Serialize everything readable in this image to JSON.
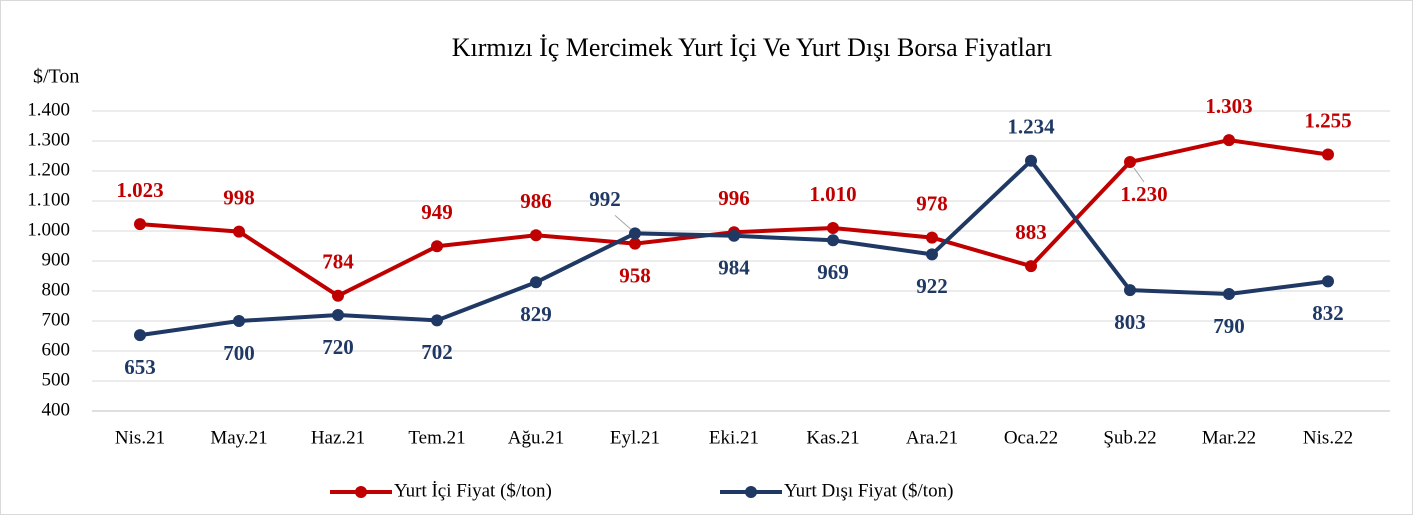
{
  "chart_data": {
    "type": "line",
    "title": "Kırmızı İç Mercimek Yurt İçi Ve  Yurt Dışı Borsa Fiyatları",
    "y_label": "$/Ton",
    "categories": [
      "Nis.21",
      "May.21",
      "Haz.21",
      "Tem.21",
      "Ağu.21",
      "Eyl.21",
      "Eki.21",
      "Kas.21",
      "Ara.21",
      "Oca.22",
      "Şub.22",
      "Mar.22",
      "Nis.22"
    ],
    "series": [
      {
        "name": "Yurt İçi Fiyat ($/ton)",
        "color": "#c00000",
        "values": [
          1023,
          998,
          784,
          949,
          986,
          958,
          996,
          1010,
          978,
          883,
          1230,
          1303,
          1255
        ],
        "value_labels": [
          "1.023",
          "998",
          "784",
          "949",
          "986",
          "958",
          "996",
          "1.010",
          "978",
          "883",
          "1.230",
          "1.303",
          "1.255"
        ]
      },
      {
        "name": "Yurt Dışı Fiyat ($/ton)",
        "color": "#1f3864",
        "values": [
          653,
          700,
          720,
          702,
          829,
          992,
          984,
          969,
          922,
          1234,
          803,
          790,
          832
        ],
        "value_labels": [
          "653",
          "700",
          "720",
          "702",
          "829",
          "992",
          "984",
          "969",
          "922",
          "1.234",
          "803",
          "790",
          "832"
        ]
      }
    ],
    "ylim": [
      400,
      1400
    ],
    "yticks": [
      400,
      500,
      600,
      700,
      800,
      900,
      {
        "value": 1000,
        "label": "1.000"
      },
      {
        "value": 1100,
        "label": "1.100"
      },
      {
        "value": 1200,
        "label": "1.200"
      },
      {
        "value": 1300,
        "label": "1.300"
      },
      {
        "value": 1400,
        "label": "1.400"
      }
    ],
    "grid": true,
    "legend": "bottom"
  }
}
